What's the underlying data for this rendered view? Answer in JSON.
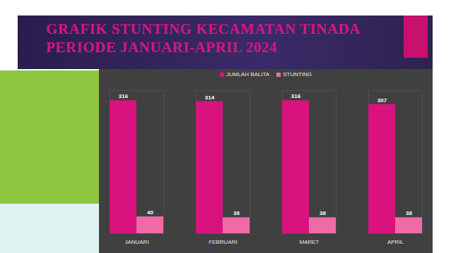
{
  "chart_data": {
    "type": "bar",
    "title": "GRAFIK STUNTING KECAMATAN TINADA\nPERIODE JANUARI-APRIL 2024",
    "categories": [
      "JANUARI",
      "FEBRUARI",
      "MARET",
      "APRIL"
    ],
    "series": [
      {
        "name": "JUMLAH BALITA",
        "color": "#d8137f",
        "values": [
          316,
          314,
          316,
          307
        ]
      },
      {
        "name": "STUNTING",
        "color": "#f06aa8",
        "values": [
          40,
          38,
          38,
          38
        ]
      }
    ],
    "ylim": [
      0,
      340
    ],
    "legend": "top",
    "data_labels": true,
    "tick_labels": "x",
    "grid": false
  }
}
